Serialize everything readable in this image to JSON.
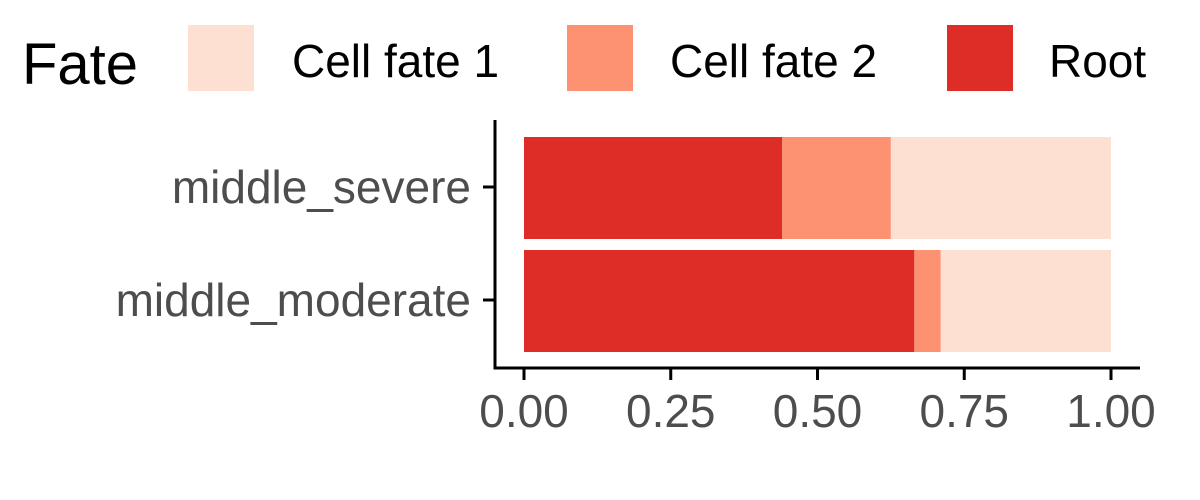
{
  "chart_data": {
    "type": "bar",
    "orientation": "horizontal",
    "stacked": true,
    "categories": [
      "middle_severe",
      "middle_moderate"
    ],
    "series": [
      {
        "name": "Root",
        "color": "#de2d26",
        "values": [
          0.44,
          0.665
        ]
      },
      {
        "name": "Cell fate 2",
        "color": "#fc9272",
        "values": [
          0.185,
          0.045
        ]
      },
      {
        "name": "Cell fate 1",
        "color": "#fee0d2",
        "values": [
          0.375,
          0.29
        ]
      }
    ],
    "xlim": [
      0,
      1
    ],
    "x_ticks": [
      0,
      0.25,
      0.5,
      0.75,
      1
    ],
    "x_tick_labels": [
      "0.00",
      "0.25",
      "0.50",
      "0.75",
      "1.00"
    ],
    "xlabel": "",
    "ylabel": "",
    "grid": false,
    "legend": {
      "title": "Fate",
      "position": "top",
      "entries": [
        "Cell fate 1",
        "Cell fate 2",
        "Root"
      ]
    }
  }
}
